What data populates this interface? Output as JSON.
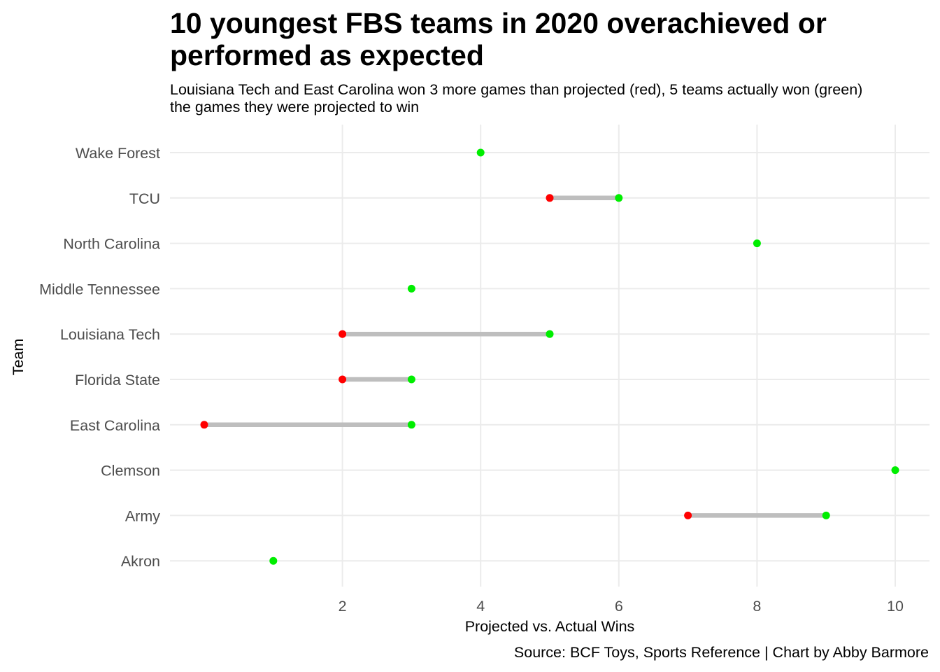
{
  "chart_data": {
    "type": "dumbbell",
    "title": "10 youngest FBS teams in 2020 overachieved or performed as expected",
    "subtitle": "Louisiana Tech and East Carolina won 3 more games than projected (red), 5 teams actually won (green) the games they were projected to win",
    "caption": "Source: BCF Toys, Sports Reference | Chart by Abby Barmore",
    "xlabel": "Projected vs. Actual Wins",
    "ylabel": "Team",
    "xticks": [
      2,
      4,
      6,
      8,
      10
    ],
    "xlim": [
      -0.5,
      10.5
    ],
    "grid": true,
    "colors": {
      "projected": "#ff0000",
      "actual": "#00ee00",
      "segment": "#bebebe",
      "grid": "#ebebeb"
    },
    "teams": [
      {
        "team": "Wake Forest",
        "projected": 4,
        "actual": 4
      },
      {
        "team": "TCU",
        "projected": 5,
        "actual": 6
      },
      {
        "team": "North Carolina",
        "projected": 8,
        "actual": 8
      },
      {
        "team": "Middle Tennessee",
        "projected": 3,
        "actual": 3
      },
      {
        "team": "Louisiana Tech",
        "projected": 2,
        "actual": 5
      },
      {
        "team": "Florida State",
        "projected": 2,
        "actual": 3
      },
      {
        "team": "East Carolina",
        "projected": 0,
        "actual": 3
      },
      {
        "team": "Clemson",
        "projected": 10,
        "actual": 10
      },
      {
        "team": "Army",
        "projected": 7,
        "actual": 9
      },
      {
        "team": "Akron",
        "projected": 1,
        "actual": 1
      }
    ]
  }
}
